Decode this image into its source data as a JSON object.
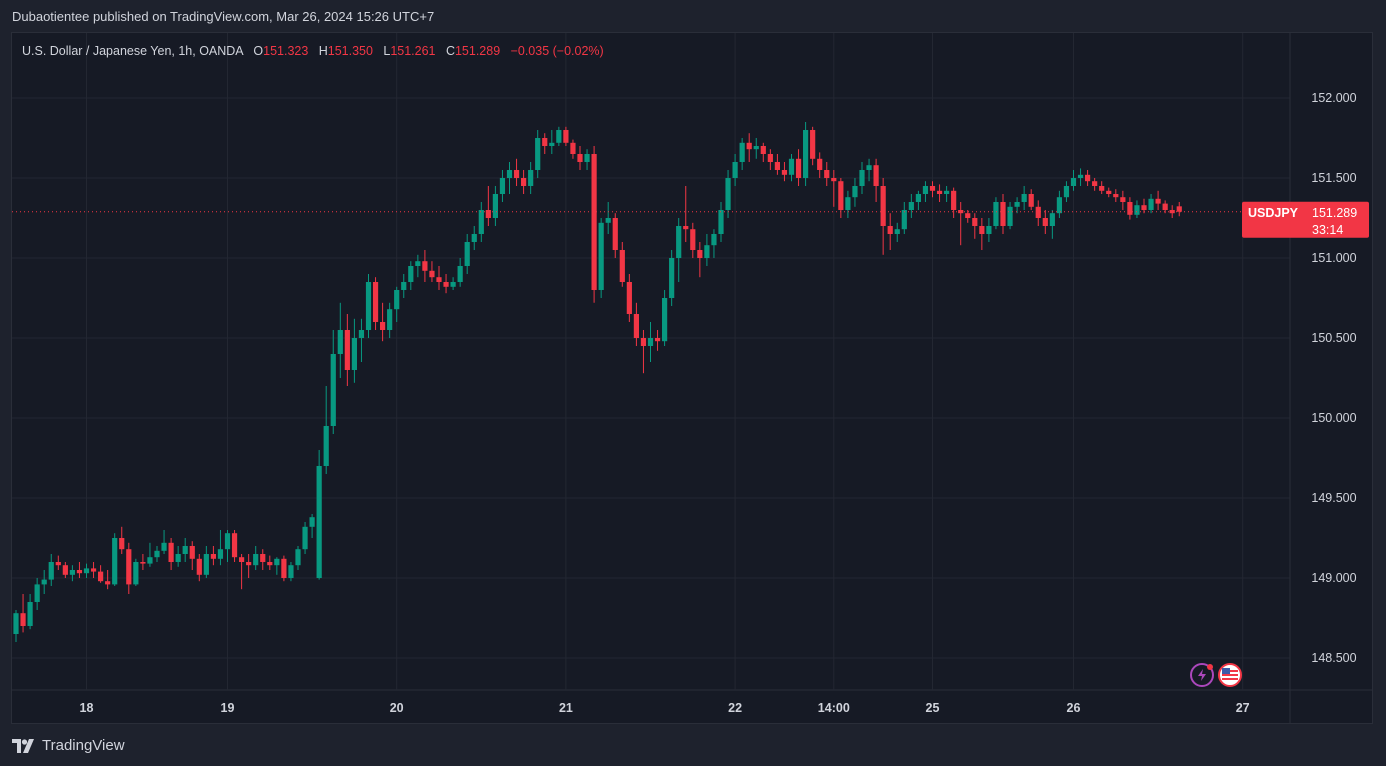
{
  "header": {
    "publisher_line": "Dubaotientee published on TradingView.com, Mar 26, 2024 15:26 UTC+7"
  },
  "legend": {
    "symbol_line": "U.S. Dollar / Japanese Yen, 1h, OANDA",
    "o_label": "O",
    "o_value": "151.323",
    "h_label": "H",
    "h_value": "151.350",
    "l_label": "L",
    "l_value": "151.261",
    "c_label": "C",
    "c_value": "151.289",
    "change": "−0.035 (−0.02%)"
  },
  "price_tag": {
    "symbol": "USDJPY",
    "price": "151.289",
    "countdown": "33:14"
  },
  "brand": {
    "name": "TradingView"
  },
  "colors": {
    "up": "#089981",
    "down": "#f23645",
    "background": "#161a25",
    "grid": "#232732"
  },
  "icons": [
    "lightning-icon",
    "us-flag-icon"
  ],
  "chart_data": {
    "type": "candlestick",
    "timeframe": "1h",
    "ylim": [
      148.3,
      152.2
    ],
    "y_ticks": [
      "152.000",
      "151.500",
      "151.000",
      "150.500",
      "150.000",
      "149.500",
      "149.000",
      "148.500"
    ],
    "x_ticks": [
      {
        "label": "18",
        "index": 10,
        "bold": true
      },
      {
        "label": "19",
        "index": 30,
        "bold": true
      },
      {
        "label": "20",
        "index": 54,
        "bold": true
      },
      {
        "label": "21",
        "index": 78,
        "bold": true
      },
      {
        "label": "22",
        "index": 102,
        "bold": true
      },
      {
        "label": "14:00",
        "index": 116,
        "bold": true
      },
      {
        "label": "25",
        "index": 130,
        "bold": true
      },
      {
        "label": "26",
        "index": 150,
        "bold": true
      },
      {
        "label": "27",
        "index": 174,
        "bold": true
      }
    ],
    "last_price": 151.289,
    "candles": [
      [
        148.65,
        148.8,
        148.6,
        148.78
      ],
      [
        148.78,
        148.9,
        148.66,
        148.7
      ],
      [
        148.7,
        148.9,
        148.68,
        148.85
      ],
      [
        148.85,
        149.0,
        148.8,
        148.96
      ],
      [
        148.96,
        149.05,
        148.9,
        148.99
      ],
      [
        148.99,
        149.15,
        148.95,
        149.1
      ],
      [
        149.1,
        149.14,
        149.05,
        149.08
      ],
      [
        149.08,
        149.1,
        149.0,
        149.02
      ],
      [
        149.02,
        149.08,
        148.98,
        149.05
      ],
      [
        149.05,
        149.1,
        149.0,
        149.03
      ],
      [
        149.03,
        149.09,
        149.0,
        149.06
      ],
      [
        149.06,
        149.1,
        149.0,
        149.04
      ],
      [
        149.04,
        149.08,
        148.97,
        148.98
      ],
      [
        148.98,
        149.05,
        148.93,
        148.96
      ],
      [
        148.96,
        149.28,
        148.95,
        149.25
      ],
      [
        149.25,
        149.32,
        149.15,
        149.18
      ],
      [
        149.18,
        149.22,
        148.9,
        148.96
      ],
      [
        148.96,
        149.12,
        148.95,
        149.1
      ],
      [
        149.1,
        149.15,
        149.05,
        149.09
      ],
      [
        149.09,
        149.22,
        149.07,
        149.13
      ],
      [
        149.13,
        149.2,
        149.1,
        149.17
      ],
      [
        149.17,
        149.3,
        149.15,
        149.22
      ],
      [
        149.22,
        149.25,
        149.05,
        149.1
      ],
      [
        149.1,
        149.2,
        149.07,
        149.15
      ],
      [
        149.15,
        149.25,
        149.1,
        149.2
      ],
      [
        149.2,
        149.23,
        149.05,
        149.12
      ],
      [
        149.12,
        149.15,
        148.98,
        149.02
      ],
      [
        149.02,
        149.2,
        149.0,
        149.15
      ],
      [
        149.15,
        149.2,
        149.08,
        149.12
      ],
      [
        149.12,
        149.3,
        149.08,
        149.18
      ],
      [
        149.18,
        149.3,
        149.1,
        149.28
      ],
      [
        149.28,
        149.3,
        149.1,
        149.13
      ],
      [
        149.13,
        149.15,
        148.93,
        149.1
      ],
      [
        149.1,
        149.15,
        149.0,
        149.08
      ],
      [
        149.08,
        149.2,
        149.05,
        149.15
      ],
      [
        149.15,
        149.18,
        149.05,
        149.1
      ],
      [
        149.1,
        149.14,
        149.05,
        149.08
      ],
      [
        149.08,
        149.13,
        149.02,
        149.12
      ],
      [
        149.12,
        149.14,
        148.98,
        149.0
      ],
      [
        149.0,
        149.1,
        148.98,
        149.08
      ],
      [
        149.08,
        149.2,
        149.05,
        149.18
      ],
      [
        149.18,
        149.35,
        149.15,
        149.32
      ],
      [
        149.32,
        149.4,
        149.25,
        149.38
      ],
      [
        149.0,
        149.8,
        148.99,
        149.7
      ],
      [
        149.7,
        150.2,
        149.65,
        149.95
      ],
      [
        149.95,
        150.55,
        149.9,
        150.4
      ],
      [
        150.4,
        150.72,
        150.25,
        150.55
      ],
      [
        150.55,
        150.65,
        150.2,
        150.3
      ],
      [
        150.3,
        150.62,
        150.22,
        150.5
      ],
      [
        150.5,
        150.62,
        150.35,
        150.55
      ],
      [
        150.55,
        150.9,
        150.5,
        150.85
      ],
      [
        150.85,
        150.88,
        150.55,
        150.6
      ],
      [
        150.6,
        150.72,
        150.48,
        150.55
      ],
      [
        150.55,
        150.72,
        150.5,
        150.68
      ],
      [
        150.68,
        150.82,
        150.6,
        150.8
      ],
      [
        150.8,
        150.9,
        150.75,
        150.85
      ],
      [
        150.85,
        150.98,
        150.8,
        150.95
      ],
      [
        150.95,
        151.02,
        150.88,
        150.98
      ],
      [
        150.98,
        151.05,
        150.85,
        150.92
      ],
      [
        150.92,
        150.98,
        150.85,
        150.88
      ],
      [
        150.88,
        150.95,
        150.8,
        150.85
      ],
      [
        150.85,
        150.9,
        150.78,
        150.82
      ],
      [
        150.82,
        150.88,
        150.8,
        150.85
      ],
      [
        150.85,
        151.0,
        150.82,
        150.95
      ],
      [
        150.95,
        151.15,
        150.9,
        151.1
      ],
      [
        151.1,
        151.2,
        151.05,
        151.15
      ],
      [
        151.15,
        151.35,
        151.1,
        151.3
      ],
      [
        151.3,
        151.45,
        151.2,
        151.25
      ],
      [
        151.25,
        151.45,
        151.2,
        151.4
      ],
      [
        151.4,
        151.55,
        151.35,
        151.5
      ],
      [
        151.5,
        151.6,
        151.4,
        151.55
      ],
      [
        151.55,
        151.62,
        151.45,
        151.5
      ],
      [
        151.5,
        151.55,
        151.4,
        151.45
      ],
      [
        151.45,
        151.6,
        151.4,
        151.55
      ],
      [
        151.55,
        151.8,
        151.5,
        151.75
      ],
      [
        151.75,
        151.78,
        151.65,
        151.7
      ],
      [
        151.7,
        151.8,
        151.65,
        151.72
      ],
      [
        151.72,
        151.82,
        151.7,
        151.8
      ],
      [
        151.8,
        151.82,
        151.7,
        151.72
      ],
      [
        151.72,
        151.74,
        151.62,
        151.65
      ],
      [
        151.65,
        151.7,
        151.55,
        151.6
      ],
      [
        151.6,
        151.68,
        151.55,
        151.65
      ],
      [
        151.65,
        151.7,
        150.72,
        150.8
      ],
      [
        150.8,
        151.25,
        150.75,
        151.22
      ],
      [
        151.22,
        151.35,
        151.15,
        151.25
      ],
      [
        151.25,
        151.28,
        151.0,
        151.05
      ],
      [
        151.05,
        151.1,
        150.82,
        150.85
      ],
      [
        150.85,
        150.9,
        150.6,
        150.65
      ],
      [
        150.65,
        150.72,
        150.45,
        150.5
      ],
      [
        150.5,
        150.55,
        150.28,
        150.45
      ],
      [
        150.45,
        150.6,
        150.35,
        150.5
      ],
      [
        150.5,
        150.55,
        150.42,
        150.48
      ],
      [
        150.48,
        150.8,
        150.45,
        150.75
      ],
      [
        150.75,
        151.05,
        150.7,
        151.0
      ],
      [
        151.0,
        151.25,
        150.85,
        151.2
      ],
      [
        151.2,
        151.45,
        151.1,
        151.18
      ],
      [
        151.18,
        151.22,
        151.0,
        151.05
      ],
      [
        151.05,
        151.1,
        150.88,
        151.0
      ],
      [
        151.0,
        151.15,
        150.95,
        151.08
      ],
      [
        151.08,
        151.18,
        151.0,
        151.15
      ],
      [
        151.15,
        151.35,
        151.1,
        151.3
      ],
      [
        151.3,
        151.55,
        151.25,
        151.5
      ],
      [
        151.5,
        151.65,
        151.45,
        151.6
      ],
      [
        151.6,
        151.75,
        151.55,
        151.72
      ],
      [
        151.72,
        151.78,
        151.6,
        151.68
      ],
      [
        151.68,
        151.75,
        151.62,
        151.7
      ],
      [
        151.7,
        151.72,
        151.6,
        151.65
      ],
      [
        151.65,
        151.68,
        151.55,
        151.6
      ],
      [
        151.6,
        151.65,
        151.52,
        151.55
      ],
      [
        151.55,
        151.6,
        151.48,
        151.52
      ],
      [
        151.52,
        151.65,
        151.48,
        151.62
      ],
      [
        151.62,
        151.68,
        151.45,
        151.5
      ],
      [
        151.5,
        151.85,
        151.45,
        151.8
      ],
      [
        151.8,
        151.82,
        151.58,
        151.62
      ],
      [
        151.62,
        151.66,
        151.5,
        151.55
      ],
      [
        151.55,
        151.6,
        151.45,
        151.5
      ],
      [
        151.5,
        151.55,
        151.32,
        151.48
      ],
      [
        151.48,
        151.5,
        151.25,
        151.3
      ],
      [
        151.3,
        151.42,
        151.25,
        151.38
      ],
      [
        151.38,
        151.5,
        151.32,
        151.45
      ],
      [
        151.45,
        151.6,
        151.4,
        151.55
      ],
      [
        151.55,
        151.62,
        151.48,
        151.58
      ],
      [
        151.58,
        151.62,
        151.35,
        151.45
      ],
      [
        151.45,
        151.5,
        151.02,
        151.2
      ],
      [
        151.2,
        151.28,
        151.05,
        151.15
      ],
      [
        151.15,
        151.22,
        151.1,
        151.18
      ],
      [
        151.18,
        151.35,
        151.15,
        151.3
      ],
      [
        151.3,
        151.4,
        151.25,
        151.35
      ],
      [
        151.35,
        151.42,
        151.3,
        151.4
      ],
      [
        151.4,
        151.48,
        151.35,
        151.45
      ],
      [
        151.45,
        151.48,
        151.38,
        151.42
      ],
      [
        151.42,
        151.46,
        151.35,
        151.4
      ],
      [
        151.4,
        151.45,
        151.35,
        151.42
      ],
      [
        151.42,
        151.44,
        151.25,
        151.3
      ],
      [
        151.3,
        151.35,
        151.08,
        151.28
      ],
      [
        151.28,
        151.3,
        151.22,
        151.25
      ],
      [
        151.25,
        151.28,
        151.12,
        151.2
      ],
      [
        151.2,
        151.25,
        151.05,
        151.15
      ],
      [
        151.15,
        151.25,
        151.1,
        151.2
      ],
      [
        151.2,
        151.38,
        151.18,
        151.35
      ],
      [
        151.35,
        151.4,
        151.15,
        151.2
      ],
      [
        151.2,
        151.35,
        151.18,
        151.32
      ],
      [
        151.32,
        151.38,
        151.28,
        151.35
      ],
      [
        151.35,
        151.45,
        151.3,
        151.4
      ],
      [
        151.4,
        151.43,
        151.3,
        151.32
      ],
      [
        151.32,
        151.36,
        151.2,
        151.25
      ],
      [
        151.25,
        151.3,
        151.15,
        151.2
      ],
      [
        151.2,
        151.3,
        151.12,
        151.28
      ],
      [
        151.28,
        151.42,
        151.25,
        151.38
      ],
      [
        151.38,
        151.48,
        151.35,
        151.45
      ],
      [
        151.45,
        151.55,
        151.42,
        151.5
      ],
      [
        151.5,
        151.56,
        151.45,
        151.52
      ],
      [
        151.52,
        151.55,
        151.45,
        151.48
      ],
      [
        151.48,
        151.5,
        151.42,
        151.45
      ],
      [
        151.45,
        151.48,
        151.4,
        151.42
      ],
      [
        151.42,
        151.44,
        151.38,
        151.4
      ],
      [
        151.4,
        151.43,
        151.35,
        151.38
      ],
      [
        151.38,
        151.42,
        151.3,
        151.35
      ],
      [
        151.35,
        151.38,
        151.24,
        151.27
      ],
      [
        151.27,
        151.36,
        151.25,
        151.33
      ],
      [
        151.33,
        151.37,
        151.28,
        151.3
      ],
      [
        151.3,
        151.4,
        151.28,
        151.37
      ],
      [
        151.37,
        151.42,
        151.3,
        151.34
      ],
      [
        151.34,
        151.36,
        151.28,
        151.3
      ],
      [
        151.3,
        151.33,
        151.25,
        151.28
      ],
      [
        151.323,
        151.35,
        151.261,
        151.289
      ]
    ]
  }
}
